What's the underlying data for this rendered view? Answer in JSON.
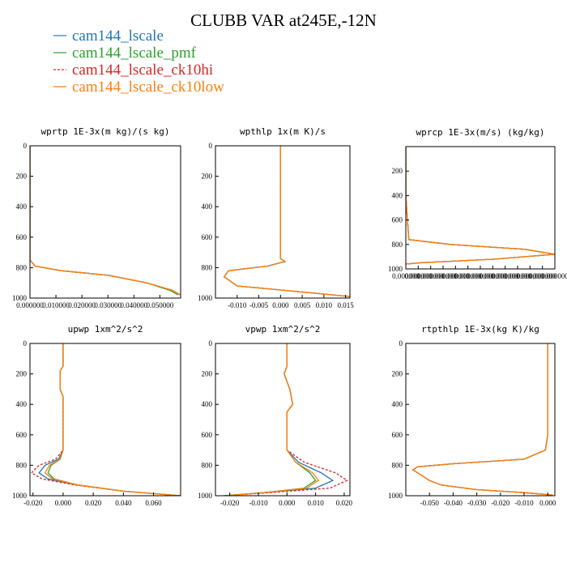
{
  "title": "CLUBB VAR at245E,-12N",
  "colors": {
    "cam144_lscale": "#1f77b4",
    "cam144_lscale_pmf": "#2ca02c",
    "cam144_lscale_ck10hi": "#d62728",
    "cam144_lscale_ck10low": "#ff7f0e"
  },
  "legend": [
    {
      "name": "cam144_lscale",
      "color": "#1f77b4",
      "dash": ""
    },
    {
      "name": "cam144_lscale_pmf",
      "color": "#2ca02c",
      "dash": ""
    },
    {
      "name": "cam144_lscale_ck10hi",
      "color": "#d62728",
      "dash": "3,2"
    },
    {
      "name": "cam144_lscale_ck10low",
      "color": "#ff7f0e",
      "dash": ""
    }
  ],
  "chart_data": [
    {
      "type": "line",
      "title": "wprtp  1E-3x(m kg)/(s kg)",
      "xlim": [
        0,
        0.058
      ],
      "ylim": [
        0,
        1000
      ],
      "yinvert": true,
      "xticks": [
        0,
        0.01,
        0.02,
        0.03,
        0.04,
        0.05
      ],
      "xticklabels": [
        "0.000000",
        "0.010000",
        "0.020000",
        "0.030000",
        "0.040000",
        "0.050000"
      ],
      "yticks": [
        0,
        200,
        400,
        600,
        800,
        1000
      ],
      "series": [
        {
          "x": [
            0,
            0,
            0,
            0.002,
            0.012,
            0.03,
            0.045,
            0.055,
            0.058
          ],
          "y": [
            0,
            400,
            750,
            790,
            820,
            850,
            900,
            950,
            980
          ]
        },
        {
          "x": [
            0,
            0,
            0,
            0.002,
            0.012,
            0.03,
            0.045,
            0.054,
            0.057
          ],
          "y": [
            0,
            400,
            750,
            790,
            820,
            850,
            900,
            950,
            980
          ]
        },
        {
          "x": [
            0,
            0,
            0,
            0.002,
            0.012,
            0.03,
            0.045,
            0.055,
            0.058
          ],
          "y": [
            0,
            400,
            750,
            790,
            820,
            850,
            900,
            950,
            980
          ]
        },
        {
          "x": [
            0,
            0,
            0,
            0.002,
            0.012,
            0.03,
            0.045,
            0.055,
            0.058
          ],
          "y": [
            0,
            400,
            750,
            790,
            820,
            850,
            900,
            950,
            980
          ]
        }
      ]
    },
    {
      "type": "line",
      "title": "wpthlp  1x(m K)/s",
      "xlim": [
        -0.015,
        0.016
      ],
      "ylim": [
        0,
        1000
      ],
      "yinvert": true,
      "xticks": [
        -0.01,
        -0.005,
        0,
        0.005,
        0.01,
        0.015
      ],
      "xticklabels": [
        "-0.010",
        "-0.005",
        "0.000",
        "0.005",
        "0.010",
        "0.015"
      ],
      "yticks": [
        0,
        200,
        400,
        600,
        800,
        1000
      ],
      "series": [
        {
          "x": [
            0,
            0,
            0,
            0.001,
            -0.003,
            -0.012,
            -0.013,
            -0.01,
            0.005,
            0.016
          ],
          "y": [
            0,
            400,
            740,
            760,
            790,
            820,
            860,
            920,
            960,
            990
          ]
        },
        {
          "x": [
            0,
            0,
            0,
            0.001,
            -0.003,
            -0.012,
            -0.013,
            -0.01,
            0.005,
            0.016
          ],
          "y": [
            0,
            400,
            740,
            760,
            790,
            820,
            860,
            920,
            960,
            990
          ]
        },
        {
          "x": [
            0,
            0,
            0,
            0.001,
            -0.003,
            -0.012,
            -0.013,
            -0.01,
            0.005,
            0.016
          ],
          "y": [
            0,
            400,
            740,
            760,
            790,
            820,
            860,
            920,
            960,
            990
          ]
        },
        {
          "x": [
            0,
            0,
            0,
            0.001,
            -0.003,
            -0.012,
            -0.013,
            -0.01,
            0.005,
            0.016
          ],
          "y": [
            0,
            400,
            740,
            760,
            790,
            820,
            860,
            920,
            960,
            990
          ]
        }
      ]
    },
    {
      "type": "line",
      "title": "wprcp  1E-3x(m/s) (kg/kg)",
      "xlim": [
        0,
        1
      ],
      "ylim": [
        0,
        1000
      ],
      "yinvert": true,
      "xticks": [
        0,
        0.0833,
        0.1667,
        0.25,
        0.3333,
        0.4167,
        0.5,
        0.5833,
        0.6667,
        0.75,
        0.8333,
        0.9167,
        1
      ],
      "xticklabels": [
        "0.000000",
        "0.000000",
        "0.000000",
        "0.000000",
        "0.000000",
        "0.000000",
        "0.000000",
        "0.000000",
        "0.000000",
        "0.000000",
        "0.000000",
        "0.000000",
        "0.000000"
      ],
      "yticks": [
        200,
        400,
        600,
        800,
        1000
      ],
      "series": [
        {
          "x": [
            0,
            0,
            0.02,
            0.3,
            0.8,
            1.0,
            0.6,
            0.1,
            0
          ],
          "y": [
            0,
            400,
            760,
            800,
            840,
            880,
            920,
            950,
            960
          ]
        },
        {
          "x": [
            0,
            0,
            0.02,
            0.3,
            0.8,
            1.0,
            0.6,
            0.1,
            0
          ],
          "y": [
            0,
            400,
            760,
            800,
            840,
            880,
            920,
            950,
            960
          ]
        },
        {
          "x": [
            0,
            0,
            0.02,
            0.3,
            0.8,
            1.0,
            0.6,
            0.1,
            0
          ],
          "y": [
            0,
            400,
            760,
            800,
            840,
            880,
            920,
            950,
            960
          ]
        },
        {
          "x": [
            0,
            0,
            0.02,
            0.3,
            0.8,
            1.0,
            0.6,
            0.1,
            0
          ],
          "y": [
            0,
            400,
            760,
            800,
            840,
            880,
            920,
            950,
            960
          ]
        }
      ]
    },
    {
      "type": "line",
      "title": "upwp  1xm^2/s^2",
      "xlim": [
        -0.022,
        0.078
      ],
      "ylim": [
        0,
        1000
      ],
      "yinvert": true,
      "xticks": [
        -0.02,
        0,
        0.02,
        0.04,
        0.06
      ],
      "xticklabels": [
        "-0.020",
        "0.000",
        "0.020",
        "0.040",
        "0.060"
      ],
      "yticks": [
        0,
        200,
        400,
        600,
        800,
        1000
      ],
      "series": [
        {
          "x": [
            0,
            0,
            -0.002,
            -0.002,
            0,
            0,
            0,
            -0.003,
            -0.012,
            -0.016,
            -0.01,
            0.01,
            0.04,
            0.078
          ],
          "y": [
            0,
            150,
            180,
            300,
            350,
            450,
            700,
            760,
            800,
            850,
            890,
            930,
            970,
            1000
          ]
        },
        {
          "x": [
            0,
            0,
            -0.002,
            -0.002,
            0,
            0,
            0,
            -0.002,
            -0.008,
            -0.01,
            -0.006,
            0.01,
            0.04,
            0.078
          ],
          "y": [
            0,
            150,
            180,
            300,
            350,
            450,
            700,
            760,
            800,
            850,
            890,
            930,
            970,
            1000
          ]
        },
        {
          "x": [
            0,
            0,
            -0.002,
            -0.002,
            0,
            0,
            0,
            -0.005,
            -0.016,
            -0.021,
            -0.014,
            0.008,
            0.04,
            0.078
          ],
          "y": [
            0,
            150,
            180,
            300,
            350,
            450,
            700,
            760,
            800,
            850,
            890,
            930,
            970,
            1000
          ]
        },
        {
          "x": [
            0,
            0,
            -0.002,
            -0.002,
            0,
            0,
            0,
            -0.002,
            -0.009,
            -0.012,
            -0.007,
            0.01,
            0.04,
            0.078
          ],
          "y": [
            0,
            150,
            180,
            300,
            350,
            450,
            700,
            760,
            800,
            850,
            890,
            930,
            970,
            1000
          ]
        }
      ]
    },
    {
      "type": "line",
      "title": "vpwp  1xm^2/s^2",
      "xlim": [
        -0.025,
        0.022
      ],
      "ylim": [
        0,
        1000
      ],
      "yinvert": true,
      "xticks": [
        -0.02,
        -0.01,
        0,
        0.01,
        0.02
      ],
      "xticklabels": [
        "-0.020",
        "-0.010",
        "0.000",
        "0.010",
        "0.020"
      ],
      "yticks": [
        0,
        200,
        400,
        600,
        800,
        1000
      ],
      "series": [
        {
          "x": [
            0,
            0,
            -0.001,
            0,
            0.001,
            0.002,
            0,
            0,
            0.004,
            0.012,
            0.016,
            0.01,
            -0.008,
            -0.022
          ],
          "y": [
            0,
            150,
            200,
            250,
            300,
            400,
            450,
            700,
            780,
            850,
            900,
            950,
            980,
            1000
          ]
        },
        {
          "x": [
            0,
            0,
            -0.001,
            0,
            0.001,
            0.002,
            0,
            0,
            0.003,
            0.008,
            0.01,
            0.006,
            -0.008,
            -0.022
          ],
          "y": [
            0,
            150,
            200,
            250,
            300,
            400,
            450,
            700,
            780,
            850,
            900,
            950,
            980,
            1000
          ]
        },
        {
          "x": [
            0,
            0,
            -0.001,
            0,
            0.001,
            0.002,
            0,
            0,
            0.006,
            0.017,
            0.021,
            0.015,
            -0.006,
            -0.022
          ],
          "y": [
            0,
            150,
            200,
            250,
            300,
            400,
            450,
            700,
            780,
            850,
            900,
            950,
            980,
            1000
          ]
        },
        {
          "x": [
            0,
            0,
            -0.001,
            0,
            0.001,
            0.002,
            0,
            0,
            0.003,
            0.009,
            0.011,
            0.007,
            -0.008,
            -0.022
          ],
          "y": [
            0,
            150,
            200,
            250,
            300,
            400,
            450,
            700,
            780,
            850,
            900,
            950,
            980,
            1000
          ]
        }
      ]
    },
    {
      "type": "line",
      "title": "rtpthlp  1E-3x(kg K)/kg",
      "xlim": [
        -0.06,
        0.003
      ],
      "ylim": [
        0,
        1000
      ],
      "yinvert": true,
      "xticks": [
        -0.05,
        -0.04,
        -0.03,
        -0.02,
        -0.01,
        0
      ],
      "xticklabels": [
        "-0.050",
        "-0.040",
        "-0.030",
        "-0.020",
        "-0.010",
        "0.000"
      ],
      "yticks": [
        0,
        200,
        400,
        600,
        800,
        1000
      ],
      "series": [
        {
          "x": [
            0,
            0,
            -0.001,
            -0.01,
            -0.04,
            -0.055,
            -0.057,
            -0.05,
            -0.045,
            -0.03,
            -0.01,
            0.002
          ],
          "y": [
            0,
            600,
            700,
            760,
            790,
            810,
            830,
            900,
            930,
            960,
            980,
            995
          ]
        },
        {
          "x": [
            0,
            0,
            -0.001,
            -0.01,
            -0.04,
            -0.055,
            -0.057,
            -0.05,
            -0.045,
            -0.03,
            -0.01,
            0.002
          ],
          "y": [
            0,
            600,
            700,
            760,
            790,
            810,
            830,
            900,
            930,
            960,
            980,
            995
          ]
        },
        {
          "x": [
            0,
            0,
            -0.001,
            -0.01,
            -0.04,
            -0.055,
            -0.057,
            -0.05,
            -0.045,
            -0.03,
            -0.01,
            0.002
          ],
          "y": [
            0,
            600,
            700,
            760,
            790,
            810,
            830,
            900,
            930,
            960,
            980,
            995
          ]
        },
        {
          "x": [
            0,
            0,
            -0.001,
            -0.01,
            -0.04,
            -0.055,
            -0.057,
            -0.05,
            -0.045,
            -0.03,
            -0.01,
            0.002
          ],
          "y": [
            0,
            600,
            700,
            760,
            790,
            810,
            830,
            900,
            930,
            960,
            980,
            995
          ]
        }
      ]
    }
  ]
}
